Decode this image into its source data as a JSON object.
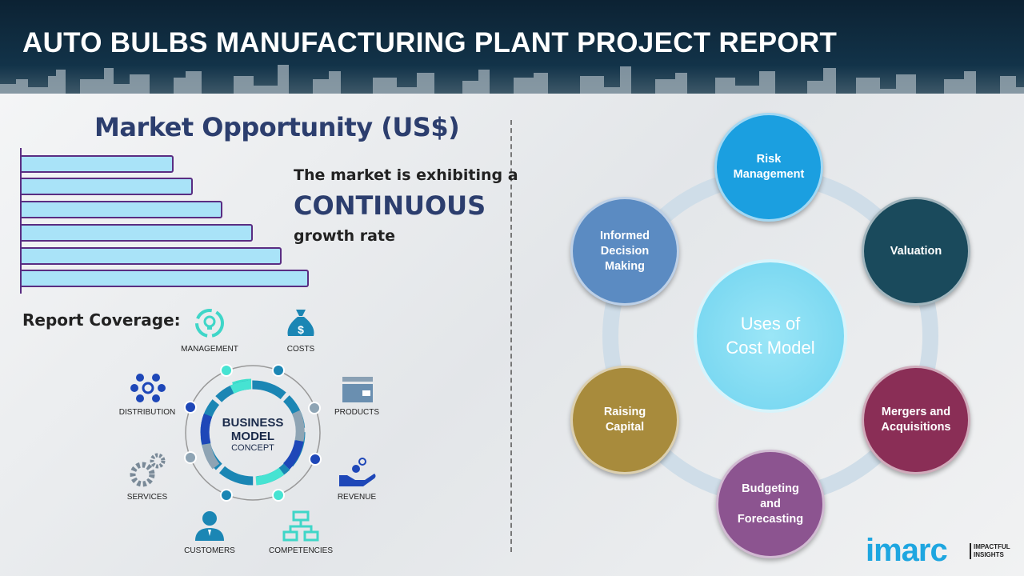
{
  "header": {
    "title": "AUTO BULBS MANUFACTURING PLANT PROJECT REPORT"
  },
  "market": {
    "title": "Market Opportunity (US$)",
    "line1": "The market is exhibiting a",
    "line2": "CONTINUOUS",
    "line3": "growth rate",
    "bar_color": "#a9e3f8",
    "bar_border": "#5a2d82"
  },
  "coverage": {
    "title": "Report Coverage:",
    "center_line1": "BUSINESS",
    "center_line2": "MODEL",
    "center_line3": "CONCEPT",
    "items": [
      {
        "label": "MANAGEMENT",
        "icon": "lightbulb-cycle-icon"
      },
      {
        "label": "COSTS",
        "icon": "money-bag-icon"
      },
      {
        "label": "DISTRIBUTION",
        "icon": "network-icon"
      },
      {
        "label": "PRODUCTS",
        "icon": "box-icon"
      },
      {
        "label": "SERVICES",
        "icon": "gears-icon"
      },
      {
        "label": "REVENUE",
        "icon": "hand-coins-icon"
      },
      {
        "label": "CUSTOMERS",
        "icon": "person-icon"
      },
      {
        "label": "COMPETENCIES",
        "icon": "org-chart-icon"
      }
    ]
  },
  "uses": {
    "center_line1": "Uses of",
    "center_line2": "Cost Model",
    "nodes": [
      {
        "label": "Risk Management",
        "color": "#1b9fe0"
      },
      {
        "label": "Valuation",
        "color": "#1a4a5c"
      },
      {
        "label": "Mergers and Acquisitions",
        "color": "#8a2e56"
      },
      {
        "label": "Budgeting and Forecasting",
        "color": "#8c5490"
      },
      {
        "label": "Raising Capital",
        "color": "#a88b3c"
      },
      {
        "label": "Informed Decision Making",
        "color": "#5b8bc2"
      }
    ]
  },
  "logo": {
    "name": "imarc",
    "tagline1": "IMPACTFUL",
    "tagline2": "INSIGHTS"
  }
}
